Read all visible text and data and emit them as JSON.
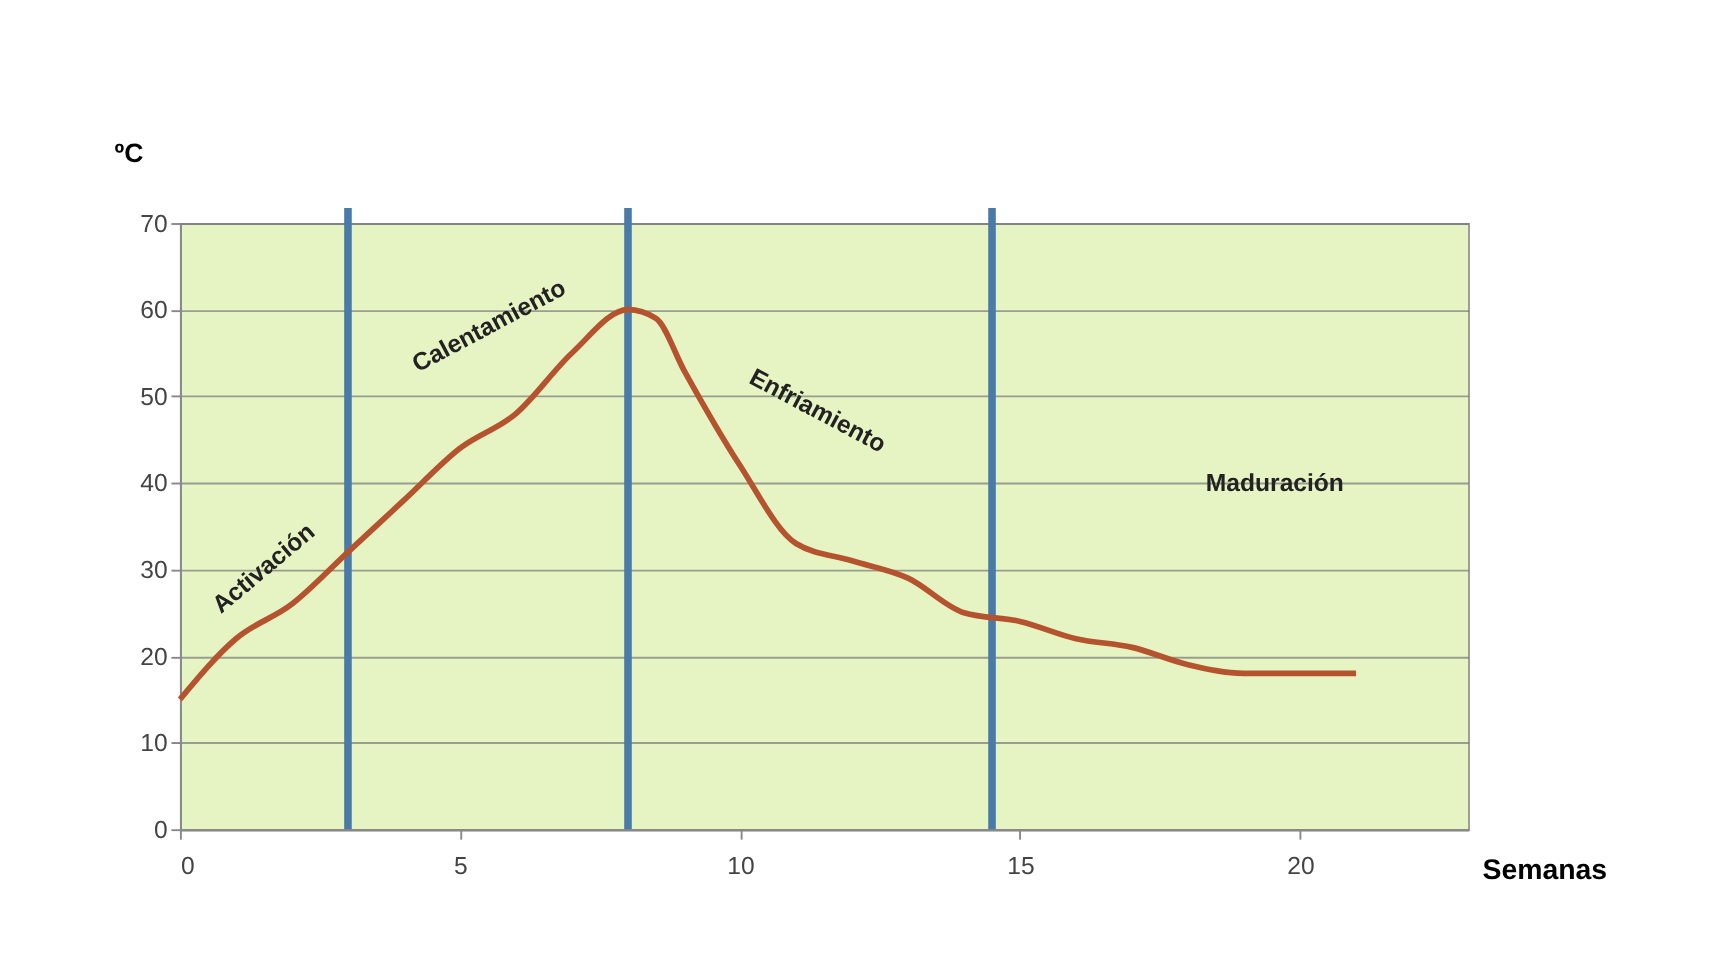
{
  "chart_data": {
    "type": "line",
    "xlabel": "Semanas",
    "ylabel": "ºC",
    "x": [
      0,
      1,
      2,
      3,
      4,
      5,
      6,
      7,
      8,
      8.5,
      9,
      10,
      11,
      12,
      13,
      14,
      15,
      16,
      17,
      18,
      19,
      20,
      21
    ],
    "series": [
      {
        "color": "#b5532f",
        "values": [
          15,
          22,
          26,
          32,
          38,
          44,
          48,
          55,
          60,
          59,
          53,
          42,
          33,
          31,
          29,
          25,
          24,
          22,
          21,
          19,
          18,
          18,
          18
        ]
      }
    ],
    "xlim": [
      0,
      23
    ],
    "xticks": [
      0,
      5,
      10,
      15,
      20
    ],
    "ylim": [
      0,
      70
    ],
    "yticks": [
      0,
      10,
      20,
      30,
      40,
      50,
      60,
      70
    ],
    "grid": "y",
    "marker": "none",
    "line_style": "solid",
    "ref_lines": [
      {
        "axis": "x",
        "value": 3,
        "color": "#4a7aa8"
      },
      {
        "axis": "x",
        "value": 8,
        "color": "#4a7aa8"
      },
      {
        "axis": "x",
        "value": 14.5,
        "color": "#4a7aa8"
      }
    ],
    "annotations": [
      "Activación",
      "Calentamiento",
      "Enfriamiento",
      "Maduración"
    ]
  }
}
